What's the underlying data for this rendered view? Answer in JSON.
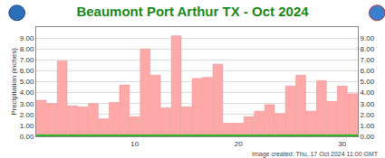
{
  "chart_data": {
    "type": "bar",
    "title": "Beaumont Port Arthur TX - Oct 2024",
    "y_label": "Precipitation (inches)",
    "annotations": [
      "Image created: Thu, 17 Oct 2024 11:00 GMT"
    ],
    "x": [
      1,
      2,
      3,
      4,
      5,
      6,
      7,
      8,
      9,
      10,
      11,
      12,
      13,
      14,
      15,
      16,
      17,
      18,
      19,
      20,
      21,
      22,
      23,
      24,
      25,
      26,
      27,
      28,
      29,
      30,
      31
    ],
    "series": [
      {
        "color": "#ffa8a8",
        "type": "bar",
        "values": [
          3.3,
          3.0,
          6.9,
          2.8,
          2.7,
          3.0,
          1.6,
          3.1,
          4.7,
          1.8,
          8.0,
          5.6,
          2.6,
          9.2,
          2.7,
          5.3,
          5.4,
          6.6,
          1.2,
          1.2,
          1.8,
          2.3,
          2.9,
          2.1,
          4.6,
          5.6,
          2.3,
          5.1,
          3.2,
          4.6,
          3.9
        ]
      },
      {
        "color": "#22b522",
        "type": "bar",
        "values": [
          0.15,
          0.15,
          0.15,
          0.15,
          0.15,
          0.15,
          0.15,
          0.15,
          0.15,
          0.15,
          0.15,
          0.15,
          0.15,
          0.15,
          0.15,
          0.15,
          0.15,
          0.15,
          0.15,
          0.15,
          0.15,
          0.15,
          0.15,
          0.15,
          0.15,
          0.15,
          0.15,
          0.15,
          0.15,
          0.15,
          0.15
        ]
      }
    ],
    "xlim": [
      0.5,
      31.5
    ],
    "xticks": [
      10,
      20,
      30
    ],
    "ylim": [
      0,
      10
    ],
    "yticks": [
      {
        "value": 0,
        "label": "0.00"
      },
      {
        "value": 1,
        "label": "1.00"
      },
      {
        "value": 2,
        "label": "2.00"
      },
      {
        "value": 3,
        "label": "3.00"
      },
      {
        "value": 4,
        "label": "4.00"
      },
      {
        "value": 5,
        "label": "5.00"
      },
      {
        "value": 6,
        "label": "6.00"
      },
      {
        "value": 7,
        "label": "7.00"
      },
      {
        "value": 8,
        "label": "8.00"
      },
      {
        "value": 9,
        "label": "9.00"
      }
    ],
    "y2lim": [
      0,
      10
    ],
    "y2ticks": [
      {
        "value": 0,
        "label": "0.00"
      },
      {
        "value": 1,
        "label": "1.00"
      },
      {
        "value": 2,
        "label": "2.00"
      },
      {
        "value": 3,
        "label": "3.00"
      },
      {
        "value": 4,
        "label": "4.00"
      },
      {
        "value": 5,
        "label": "5.00"
      },
      {
        "value": 6,
        "label": "6.00"
      },
      {
        "value": 7,
        "label": "7.00"
      },
      {
        "value": 8,
        "label": "8.00"
      },
      {
        "value": 9,
        "label": "9.00"
      }
    ],
    "grid": true
  }
}
